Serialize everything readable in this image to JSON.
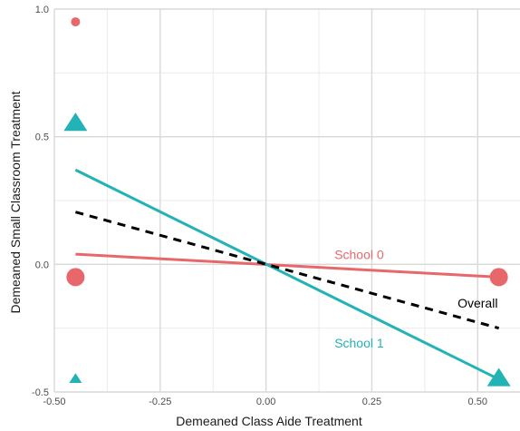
{
  "chart_data": {
    "type": "scatter",
    "xlabel": "Demeaned Class Aide Treatment",
    "ylabel": "Demeaned Small Classroom Treatment",
    "xlim": [
      -0.5,
      0.6
    ],
    "ylim": [
      -0.5,
      1.0
    ],
    "x_ticks": [
      -0.5,
      -0.25,
      0.0,
      0.25,
      0.5
    ],
    "x_tick_labels": [
      "-0.50",
      "-0.25",
      "0.00",
      "0.25",
      "0.50"
    ],
    "y_ticks": [
      -0.5,
      0.0,
      0.5,
      1.0
    ],
    "y_tick_labels": [
      "-0.5",
      "0.0",
      "0.5",
      "1.0"
    ],
    "grid": true,
    "colors": {
      "school0": "#e8676a",
      "school1": "#23b2b5",
      "overall": "#000000"
    },
    "points": [
      {
        "series": "School 0",
        "shape": "circle",
        "size": "small",
        "x": -0.45,
        "y": 0.95
      },
      {
        "series": "School 0",
        "shape": "circle",
        "size": "large",
        "x": -0.45,
        "y": -0.05
      },
      {
        "series": "School 0",
        "shape": "circle",
        "size": "large",
        "x": 0.55,
        "y": -0.05
      },
      {
        "series": "School 1",
        "shape": "triangle",
        "size": "large",
        "x": -0.45,
        "y": 0.55
      },
      {
        "series": "School 1",
        "shape": "triangle",
        "size": "small",
        "x": -0.45,
        "y": -0.45
      },
      {
        "series": "School 1",
        "shape": "triangle",
        "size": "large",
        "x": 0.55,
        "y": -0.45
      }
    ],
    "lines": [
      {
        "name": "School 0",
        "color": "#e8676a",
        "dashed": false,
        "x": [
          -0.45,
          0.55
        ],
        "y": [
          0.04,
          -0.05
        ]
      },
      {
        "name": "School 1",
        "color": "#23b2b5",
        "dashed": false,
        "x": [
          -0.45,
          0.55
        ],
        "y": [
          0.37,
          -0.45
        ]
      },
      {
        "name": "Overall",
        "color": "#000000",
        "dashed": true,
        "x": [
          -0.45,
          0.55
        ],
        "y": [
          0.205,
          -0.25
        ]
      }
    ],
    "annotations": [
      {
        "text": "School 0",
        "color": "#e8676a",
        "x": 0.22,
        "y": 0.02
      },
      {
        "text": "Overall",
        "color": "#000000",
        "x": 0.5,
        "y": -0.17
      },
      {
        "text": "School 1",
        "color": "#23b2b5",
        "x": 0.22,
        "y": -0.325
      }
    ]
  }
}
